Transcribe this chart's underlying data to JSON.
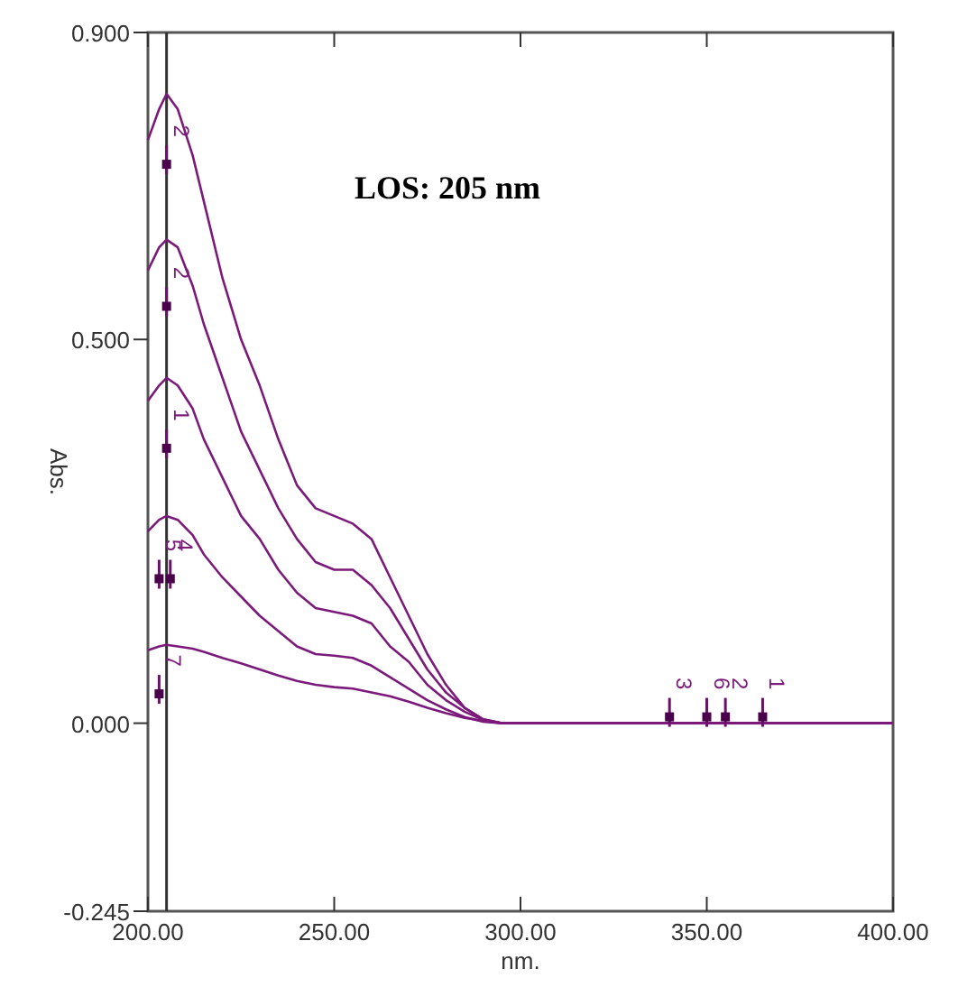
{
  "chart_data": {
    "type": "line",
    "title": "LOS: 205 nm",
    "xlabel": "nm.",
    "ylabel": "Abs.",
    "x": [
      200,
      203,
      205,
      208,
      212,
      215,
      220,
      225,
      230,
      235,
      240,
      245,
      250,
      255,
      260,
      265,
      270,
      275,
      280,
      285,
      290,
      295,
      300,
      400
    ],
    "series": [
      {
        "color": "#7b1a7b",
        "values": [
          0.76,
          0.8,
          0.82,
          0.8,
          0.74,
          0.68,
          0.58,
          0.5,
          0.44,
          0.37,
          0.31,
          0.28,
          0.27,
          0.26,
          0.24,
          0.19,
          0.14,
          0.09,
          0.05,
          0.02,
          0.005,
          0,
          0,
          0
        ]
      },
      {
        "color": "#7b1a7b",
        "values": [
          0.59,
          0.62,
          0.63,
          0.62,
          0.57,
          0.52,
          0.45,
          0.38,
          0.33,
          0.28,
          0.24,
          0.21,
          0.2,
          0.2,
          0.18,
          0.15,
          0.11,
          0.07,
          0.04,
          0.02,
          0.005,
          0,
          0,
          0
        ]
      },
      {
        "color": "#7b1a7b",
        "values": [
          0.42,
          0.44,
          0.45,
          0.44,
          0.41,
          0.37,
          0.32,
          0.27,
          0.24,
          0.2,
          0.17,
          0.15,
          0.145,
          0.14,
          0.13,
          0.1,
          0.08,
          0.05,
          0.03,
          0.015,
          0.004,
          0,
          0,
          0
        ]
      },
      {
        "color": "#7b1a7b",
        "values": [
          0.25,
          0.265,
          0.27,
          0.265,
          0.245,
          0.22,
          0.19,
          0.165,
          0.14,
          0.12,
          0.1,
          0.09,
          0.088,
          0.085,
          0.075,
          0.06,
          0.045,
          0.03,
          0.018,
          0.008,
          0.002,
          0,
          0,
          0
        ]
      },
      {
        "color": "#7b1a7b",
        "values": [
          0.095,
          0.1,
          0.102,
          0.1,
          0.097,
          0.093,
          0.085,
          0.078,
          0.07,
          0.062,
          0.055,
          0.05,
          0.047,
          0.045,
          0.04,
          0.035,
          0.028,
          0.02,
          0.013,
          0.007,
          0.003,
          0,
          0,
          0
        ]
      }
    ],
    "xlim": [
      200,
      400
    ],
    "xticks": [
      {
        "value": 200,
        "label": "200.00"
      },
      {
        "value": 250,
        "label": "250.00"
      },
      {
        "value": 300,
        "label": "300.00"
      },
      {
        "value": 350,
        "label": "350.00"
      },
      {
        "value": 400,
        "label": "400.00"
      }
    ],
    "ylim": [
      -0.245,
      0.9
    ],
    "yticks": [
      {
        "value": -0.245,
        "label": "-0.245"
      },
      {
        "value": 0,
        "label": "0.000"
      },
      {
        "value": 0.5,
        "label": "0.500"
      },
      {
        "value": 0.9,
        "label": "0.900"
      }
    ],
    "ref_lines": [
      {
        "axis": "x",
        "value": 205,
        "color": "#333333"
      }
    ],
    "annotations": [
      {
        "text": "2",
        "x": 205,
        "y": 0.72
      },
      {
        "text": "2",
        "x": 205,
        "y": 0.535
      },
      {
        "text": "1",
        "x": 205,
        "y": 0.35
      },
      {
        "text": "5",
        "x": 203,
        "y": 0.18
      },
      {
        "text": "4",
        "x": 206,
        "y": 0.18
      },
      {
        "text": "7",
        "x": 203,
        "y": 0.03
      },
      {
        "text": "3",
        "x": 340,
        "y": 0
      },
      {
        "text": "2",
        "x": 355,
        "y": 0
      },
      {
        "text": "1",
        "x": 365,
        "y": 0
      },
      {
        "text": "6",
        "x": 350,
        "y": 0
      }
    ],
    "grid": false,
    "marker": "none",
    "line_style": "solid"
  }
}
